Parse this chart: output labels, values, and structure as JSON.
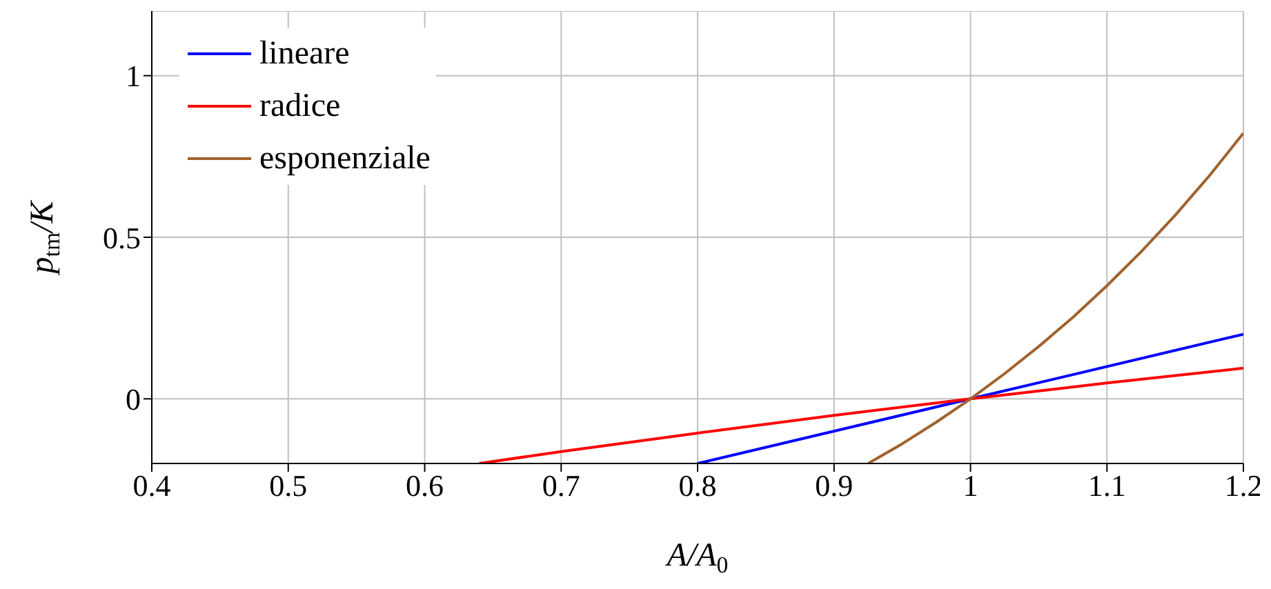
{
  "chart_data": {
    "type": "line",
    "xlabel": "A/A$_{0}$",
    "ylabel": "p$_{tm}$/K",
    "xlim": [
      0.4,
      1.2
    ],
    "xticks": [
      0.4,
      0.5,
      0.6,
      0.7,
      0.8,
      0.9,
      1,
      1.1,
      1.2
    ],
    "ylim": [
      -0.2,
      1.2
    ],
    "yticks": [
      0,
      0.5,
      1
    ],
    "grid": true,
    "legend": "top left",
    "marker": "none",
    "line_style": "solid",
    "series": [
      {
        "name": "lineare",
        "color": "#0000ff",
        "x": [
          0.8,
          1.0,
          1.2
        ],
        "values": [
          -0.2,
          0,
          0.2
        ]
      },
      {
        "name": "radice",
        "color": "#ff0000",
        "x": [
          0.64,
          0.7,
          0.8,
          0.9,
          1.0,
          1.1,
          1.2
        ],
        "values": [
          -0.2,
          -0.163,
          -0.106,
          -0.051,
          0,
          0.049,
          0.095
        ]
      },
      {
        "name": "esponenziale",
        "color": "#a0622d",
        "x": [
          0.925,
          0.95,
          0.975,
          1.0,
          1.025,
          1.05,
          1.075,
          1.1,
          1.125,
          1.15,
          1.175,
          1.2
        ],
        "values": [
          -0.2,
          -0.139,
          -0.072,
          0,
          0.078,
          0.162,
          0.252,
          0.35,
          0.455,
          0.568,
          0.69,
          0.822
        ]
      }
    ]
  }
}
